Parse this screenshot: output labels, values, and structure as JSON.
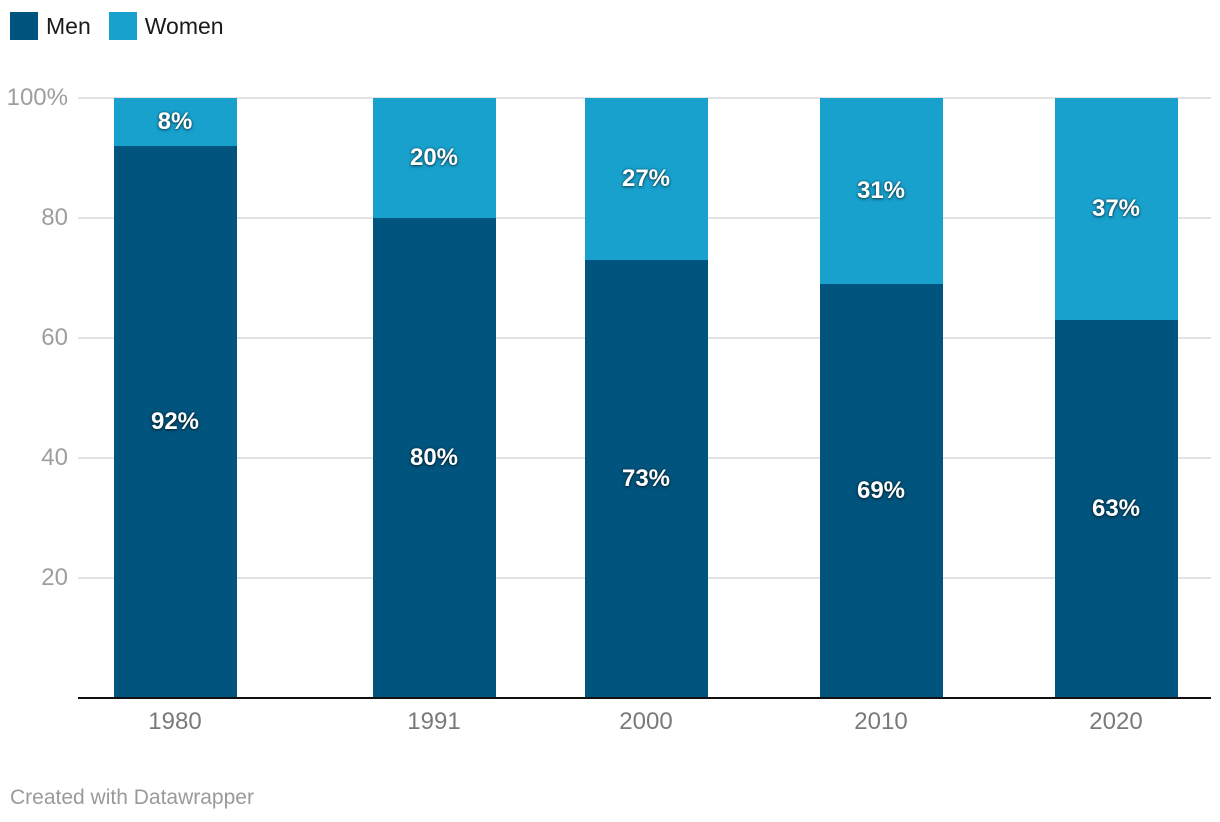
{
  "legend": {
    "items": [
      {
        "label": "Men",
        "color": "#00547d"
      },
      {
        "label": "Women",
        "color": "#18a1cd"
      }
    ]
  },
  "chart_data": {
    "type": "bar",
    "stacked": true,
    "x_axis_type": "linear-year",
    "categories": [
      "1980",
      "1991",
      "2000",
      "2010",
      "2020"
    ],
    "series": [
      {
        "name": "Men",
        "color": "#00547d",
        "values": [
          92,
          80,
          73,
          69,
          63
        ]
      },
      {
        "name": "Women",
        "color": "#18a1cd",
        "values": [
          8,
          20,
          27,
          31,
          37
        ]
      }
    ],
    "value_labels": {
      "Men": [
        "92%",
        "80%",
        "73%",
        "69%",
        "63%"
      ],
      "Women": [
        "8%",
        "20%",
        "27%",
        "31%",
        "37%"
      ]
    },
    "y_ticks": [
      {
        "value": 100,
        "label": "100%"
      },
      {
        "value": 80,
        "label": "80"
      },
      {
        "value": 60,
        "label": "60"
      },
      {
        "value": 40,
        "label": "40"
      },
      {
        "value": 20,
        "label": "20"
      }
    ],
    "ylim": [
      0,
      100
    ],
    "grid": true,
    "legend_position": "top-left",
    "title": "",
    "xlabel": "",
    "ylabel": ""
  },
  "footer": {
    "attribution": "Created with Datawrapper"
  },
  "colors": {
    "men": "#00547d",
    "women": "#18a1cd",
    "gridline": "#e3e3e3",
    "axisline": "#111111",
    "y_tick_text": "#9e9e9e",
    "x_tick_text": "#7a7a7a",
    "legend_text": "#1a1a1a",
    "footer_text": "#9a9a9a",
    "bar_label_text": "#ffffff"
  }
}
